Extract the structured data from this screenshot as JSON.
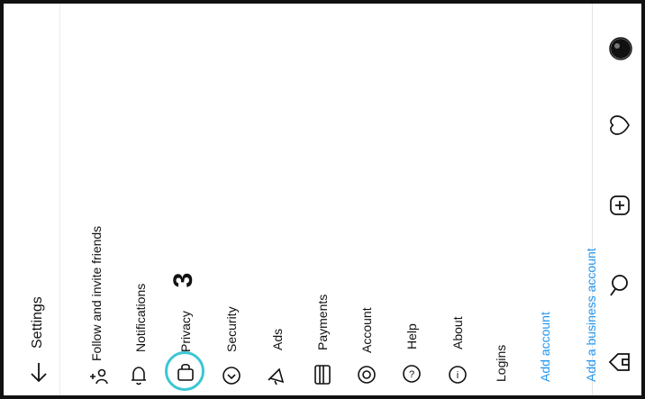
{
  "header": {
    "title": "Settings",
    "back_icon": "back-arrow-icon"
  },
  "menu": {
    "items": [
      {
        "label": "Follow and invite friends",
        "icon": "add-person-icon"
      },
      {
        "label": "Notifications",
        "icon": "bell-icon"
      },
      {
        "label": "Privacy",
        "icon": "lock-icon"
      },
      {
        "label": "Security",
        "icon": "shield-icon"
      },
      {
        "label": "Ads",
        "icon": "megaphone-icon"
      },
      {
        "label": "Payments",
        "icon": "card-icon"
      },
      {
        "label": "Account",
        "icon": "account-icon"
      },
      {
        "label": "Help",
        "icon": "help-icon"
      },
      {
        "label": "About",
        "icon": "info-icon"
      }
    ],
    "logins_header": "Logins",
    "add_account": "Add account",
    "add_business_account": "Add a business account"
  },
  "bottom_nav": {
    "items": [
      "profile-avatar-icon",
      "heart-icon",
      "new-post-icon",
      "search-icon",
      "home-icon"
    ]
  },
  "annotation": {
    "step_number": "3",
    "highlight_color": "#3bc6d4"
  },
  "colors": {
    "link": "#2196f3",
    "text": "#111111"
  }
}
